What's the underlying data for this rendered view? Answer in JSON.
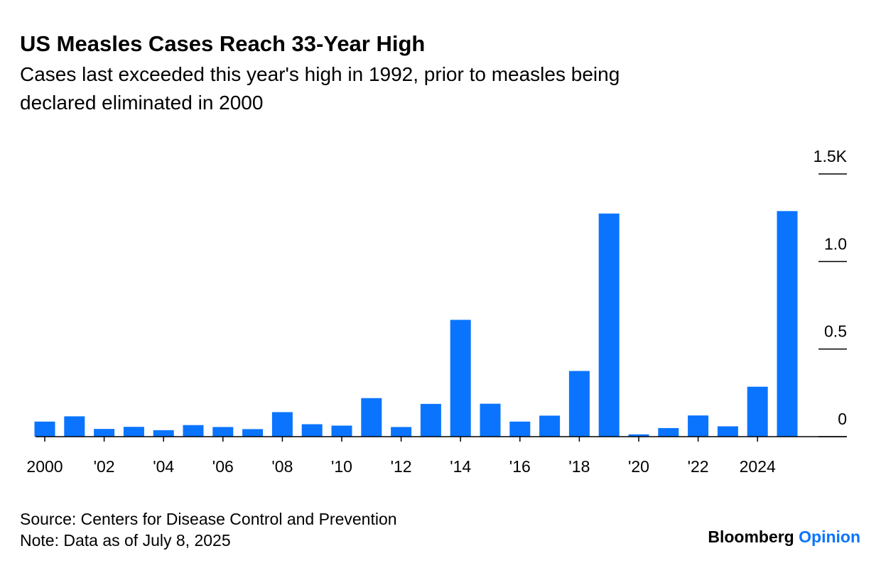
{
  "chart_data": {
    "type": "bar",
    "title": "US Measles Cases Reach 33-Year High",
    "subtitle": "Cases last exceeded this year's high in 1992, prior to measles being declared eliminated in 2000",
    "categories": [
      "2000",
      null,
      "'02",
      null,
      "'04",
      null,
      "'06",
      null,
      "'08",
      null,
      "'10",
      null,
      "'12",
      null,
      "'14",
      null,
      "'16",
      null,
      "'18",
      null,
      "'20",
      null,
      "'22",
      null,
      "2024",
      null
    ],
    "values": [
      86,
      116,
      44,
      56,
      37,
      66,
      55,
      43,
      140,
      71,
      63,
      220,
      55,
      187,
      667,
      188,
      86,
      120,
      375,
      1274,
      13,
      49,
      121,
      59,
      285,
      1288
    ],
    "color": "#0a74ff",
    "ylim": [
      0,
      1500
    ],
    "yticks": [
      0,
      {
        "value": 500,
        "label": "0.5"
      },
      {
        "value": 1000,
        "label": "1.0"
      },
      {
        "value": 1500,
        "label": "1.5K"
      }
    ],
    "source": "Source: Centers for Disease Control and Prevention",
    "note": "Note: Data as of July 8, 2025",
    "credit": "Bloomberg",
    "credit_suffix": "Opinion"
  }
}
